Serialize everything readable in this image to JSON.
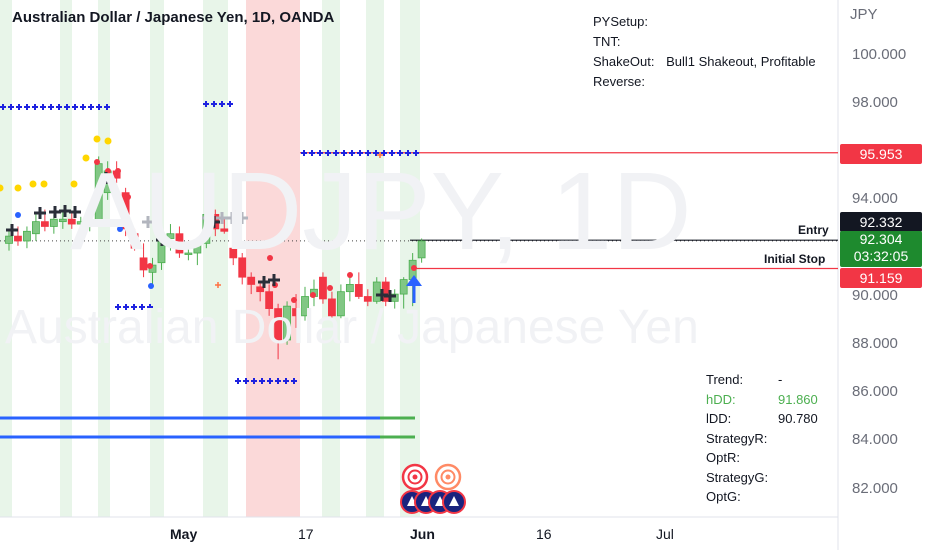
{
  "header": {
    "title": "Australian Dollar / Japanese Yen, 1D, OANDA",
    "watermark_symbol": "AUDJPY, 1D",
    "watermark_name": "Australian Dollar / Japanese Yen"
  },
  "info_panel": {
    "pysetup_label": "PYSetup:",
    "tnt_label": "TNT:",
    "shakeout_label": "ShakeOut:",
    "shakeout_value": "Bull1 Shakeout, Profitable",
    "reverse_label": "Reverse:"
  },
  "stats_panel": {
    "trend_label": "Trend:",
    "trend_value": "-",
    "hdd_label": "hDD:",
    "hdd_value": "91.860",
    "idd_label": "lDD:",
    "idd_value": "90.780",
    "strategyr_label": "StrategyR:",
    "optr_label": "OptR:",
    "strategyg_label": "StrategyG:",
    "optg_label": "OptG:"
  },
  "price_axis": {
    "currency": "JPY",
    "ticks": [
      "100.000",
      "98.000",
      "94.000",
      "90.000",
      "88.000",
      "86.000",
      "84.000",
      "82.000"
    ]
  },
  "time_axis": {
    "ticks": [
      "May",
      "17",
      "Jun",
      "16",
      "Jul"
    ]
  },
  "price_tags": {
    "upper_stop": "95.953",
    "entry": "92.332",
    "current": "92.304",
    "countdown": "03:32:05",
    "initial_stop": "91.159"
  },
  "line_labels": {
    "entry": "Entry",
    "initial_stop": "Initial Stop"
  },
  "colors": {
    "up": "#4caf50",
    "down": "#f23645",
    "up_fill": "#81c784",
    "band_green": "#e8f5e9",
    "band_red": "#fbd9d9",
    "plus_blue": "#1e22e0",
    "line_red": "#f23645",
    "line_blue": "#2962ff"
  },
  "chart_data": {
    "type": "candlestick",
    "ylim": [
      80.8,
      101.2
    ],
    "candles": [
      {
        "o": 92.2,
        "h": 92.8,
        "l": 91.9,
        "c": 92.5
      },
      {
        "o": 92.5,
        "h": 92.9,
        "l": 92.1,
        "c": 92.3
      },
      {
        "o": 92.3,
        "h": 92.9,
        "l": 92.0,
        "c": 92.7
      },
      {
        "o": 92.6,
        "h": 93.4,
        "l": 92.3,
        "c": 93.1
      },
      {
        "o": 93.1,
        "h": 93.6,
        "l": 92.7,
        "c": 92.9
      },
      {
        "o": 92.9,
        "h": 93.4,
        "l": 92.6,
        "c": 93.2
      },
      {
        "o": 93.1,
        "h": 93.5,
        "l": 92.8,
        "c": 93.2
      },
      {
        "o": 93.2,
        "h": 93.5,
        "l": 92.8,
        "c": 93.0
      },
      {
        "o": 93.0,
        "h": 93.3,
        "l": 92.8,
        "c": 93.1
      },
      {
        "o": 92.9,
        "h": 93.2,
        "l": 92.7,
        "c": 93.0
      },
      {
        "o": 93.0,
        "h": 95.8,
        "l": 92.9,
        "c": 95.5
      },
      {
        "o": 94.3,
        "h": 95.6,
        "l": 94.0,
        "c": 95.2
      },
      {
        "o": 95.2,
        "h": 95.6,
        "l": 94.7,
        "c": 94.9
      },
      {
        "o": 94.3,
        "h": 94.5,
        "l": 92.5,
        "c": 92.8
      },
      {
        "o": 92.6,
        "h": 92.8,
        "l": 91.9,
        "c": 92.0
      },
      {
        "o": 91.6,
        "h": 92.2,
        "l": 90.8,
        "c": 91.1
      },
      {
        "o": 91.0,
        "h": 91.6,
        "l": 90.4,
        "c": 91.3
      },
      {
        "o": 91.4,
        "h": 92.8,
        "l": 91.1,
        "c": 92.4
      },
      {
        "o": 92.4,
        "h": 93.0,
        "l": 91.9,
        "c": 92.6
      },
      {
        "o": 92.6,
        "h": 92.9,
        "l": 91.6,
        "c": 91.8
      },
      {
        "o": 91.8,
        "h": 92.2,
        "l": 91.5,
        "c": 91.8
      },
      {
        "o": 91.8,
        "h": 92.4,
        "l": 91.3,
        "c": 92.2
      },
      {
        "o": 92.2,
        "h": 93.7,
        "l": 92.0,
        "c": 93.4
      },
      {
        "o": 93.4,
        "h": 93.6,
        "l": 92.5,
        "c": 92.8
      },
      {
        "o": 92.8,
        "h": 93.3,
        "l": 92.6,
        "c": 92.7
      },
      {
        "o": 92.0,
        "h": 92.3,
        "l": 91.3,
        "c": 91.6
      },
      {
        "o": 91.6,
        "h": 91.8,
        "l": 90.5,
        "c": 90.8
      },
      {
        "o": 90.8,
        "h": 91.0,
        "l": 90.1,
        "c": 90.5
      },
      {
        "o": 90.4,
        "h": 90.6,
        "l": 89.8,
        "c": 90.2
      },
      {
        "o": 90.2,
        "h": 90.5,
        "l": 89.2,
        "c": 89.5
      },
      {
        "o": 89.5,
        "h": 89.7,
        "l": 87.4,
        "c": 88.2
      },
      {
        "o": 88.2,
        "h": 89.8,
        "l": 88.0,
        "c": 89.6
      },
      {
        "o": 89.5,
        "h": 90.1,
        "l": 88.7,
        "c": 89.2
      },
      {
        "o": 89.2,
        "h": 90.4,
        "l": 89.0,
        "c": 90.0
      },
      {
        "o": 90.0,
        "h": 90.7,
        "l": 89.6,
        "c": 90.3
      },
      {
        "o": 90.8,
        "h": 91.0,
        "l": 89.7,
        "c": 89.9
      },
      {
        "o": 89.9,
        "h": 90.2,
        "l": 89.0,
        "c": 89.2
      },
      {
        "o": 89.2,
        "h": 90.5,
        "l": 89.1,
        "c": 90.2
      },
      {
        "o": 90.2,
        "h": 90.8,
        "l": 89.8,
        "c": 90.5
      },
      {
        "o": 90.5,
        "h": 91.0,
        "l": 89.9,
        "c": 90.0
      },
      {
        "o": 90.0,
        "h": 90.3,
        "l": 89.6,
        "c": 89.8
      },
      {
        "o": 89.8,
        "h": 90.8,
        "l": 89.7,
        "c": 90.6
      },
      {
        "o": 90.6,
        "h": 90.8,
        "l": 89.6,
        "c": 89.8
      },
      {
        "o": 89.8,
        "h": 90.3,
        "l": 89.5,
        "c": 90.1
      },
      {
        "o": 90.1,
        "h": 90.8,
        "l": 89.5,
        "c": 90.7
      },
      {
        "o": 90.7,
        "h": 91.8,
        "l": 89.6,
        "c": 91.5
      },
      {
        "o": 91.6,
        "h": 92.4,
        "l": 91.4,
        "c": 92.3
      }
    ],
    "stop_lines": [
      {
        "name": "upper_stop",
        "value": 95.953
      },
      {
        "name": "initial_stop",
        "value": 91.159
      }
    ],
    "entry_line": 92.332,
    "current_price": 92.304
  }
}
